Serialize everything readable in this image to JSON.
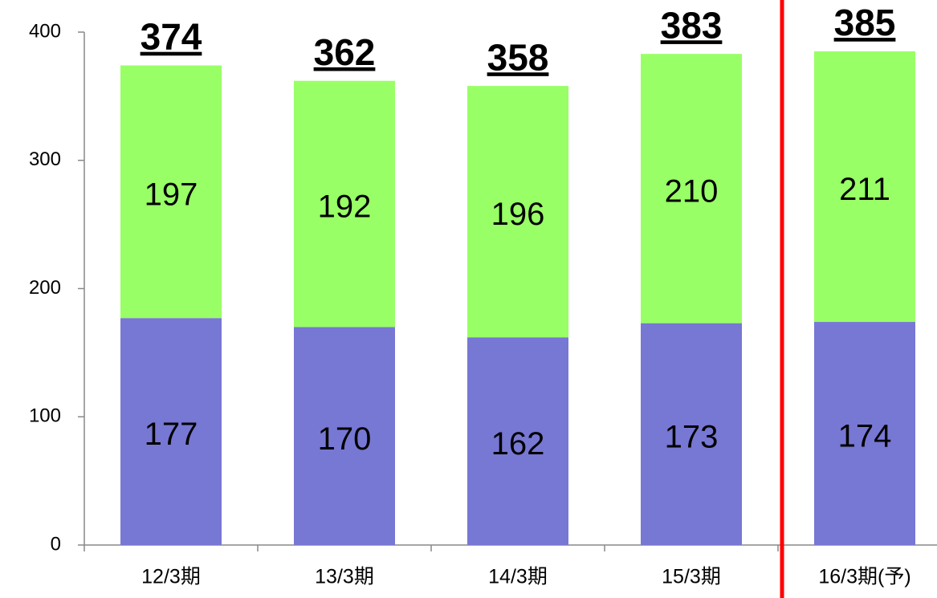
{
  "chart_data": {
    "type": "stacked_bar",
    "categories": [
      "12/3期",
      "13/3期",
      "14/3期",
      "15/3期",
      "16/3期(予)"
    ],
    "series": [
      {
        "color": "#7777d4",
        "values": [
          177,
          170,
          162,
          173,
          174
        ]
      },
      {
        "color": "#99ff66",
        "values": [
          197,
          192,
          196,
          210,
          211
        ]
      }
    ],
    "totals": [
      374,
      362,
      358,
      383,
      385
    ],
    "ylim": [
      0,
      400
    ],
    "yticks": [
      0,
      100,
      200,
      300,
      400
    ],
    "grid": false
  }
}
